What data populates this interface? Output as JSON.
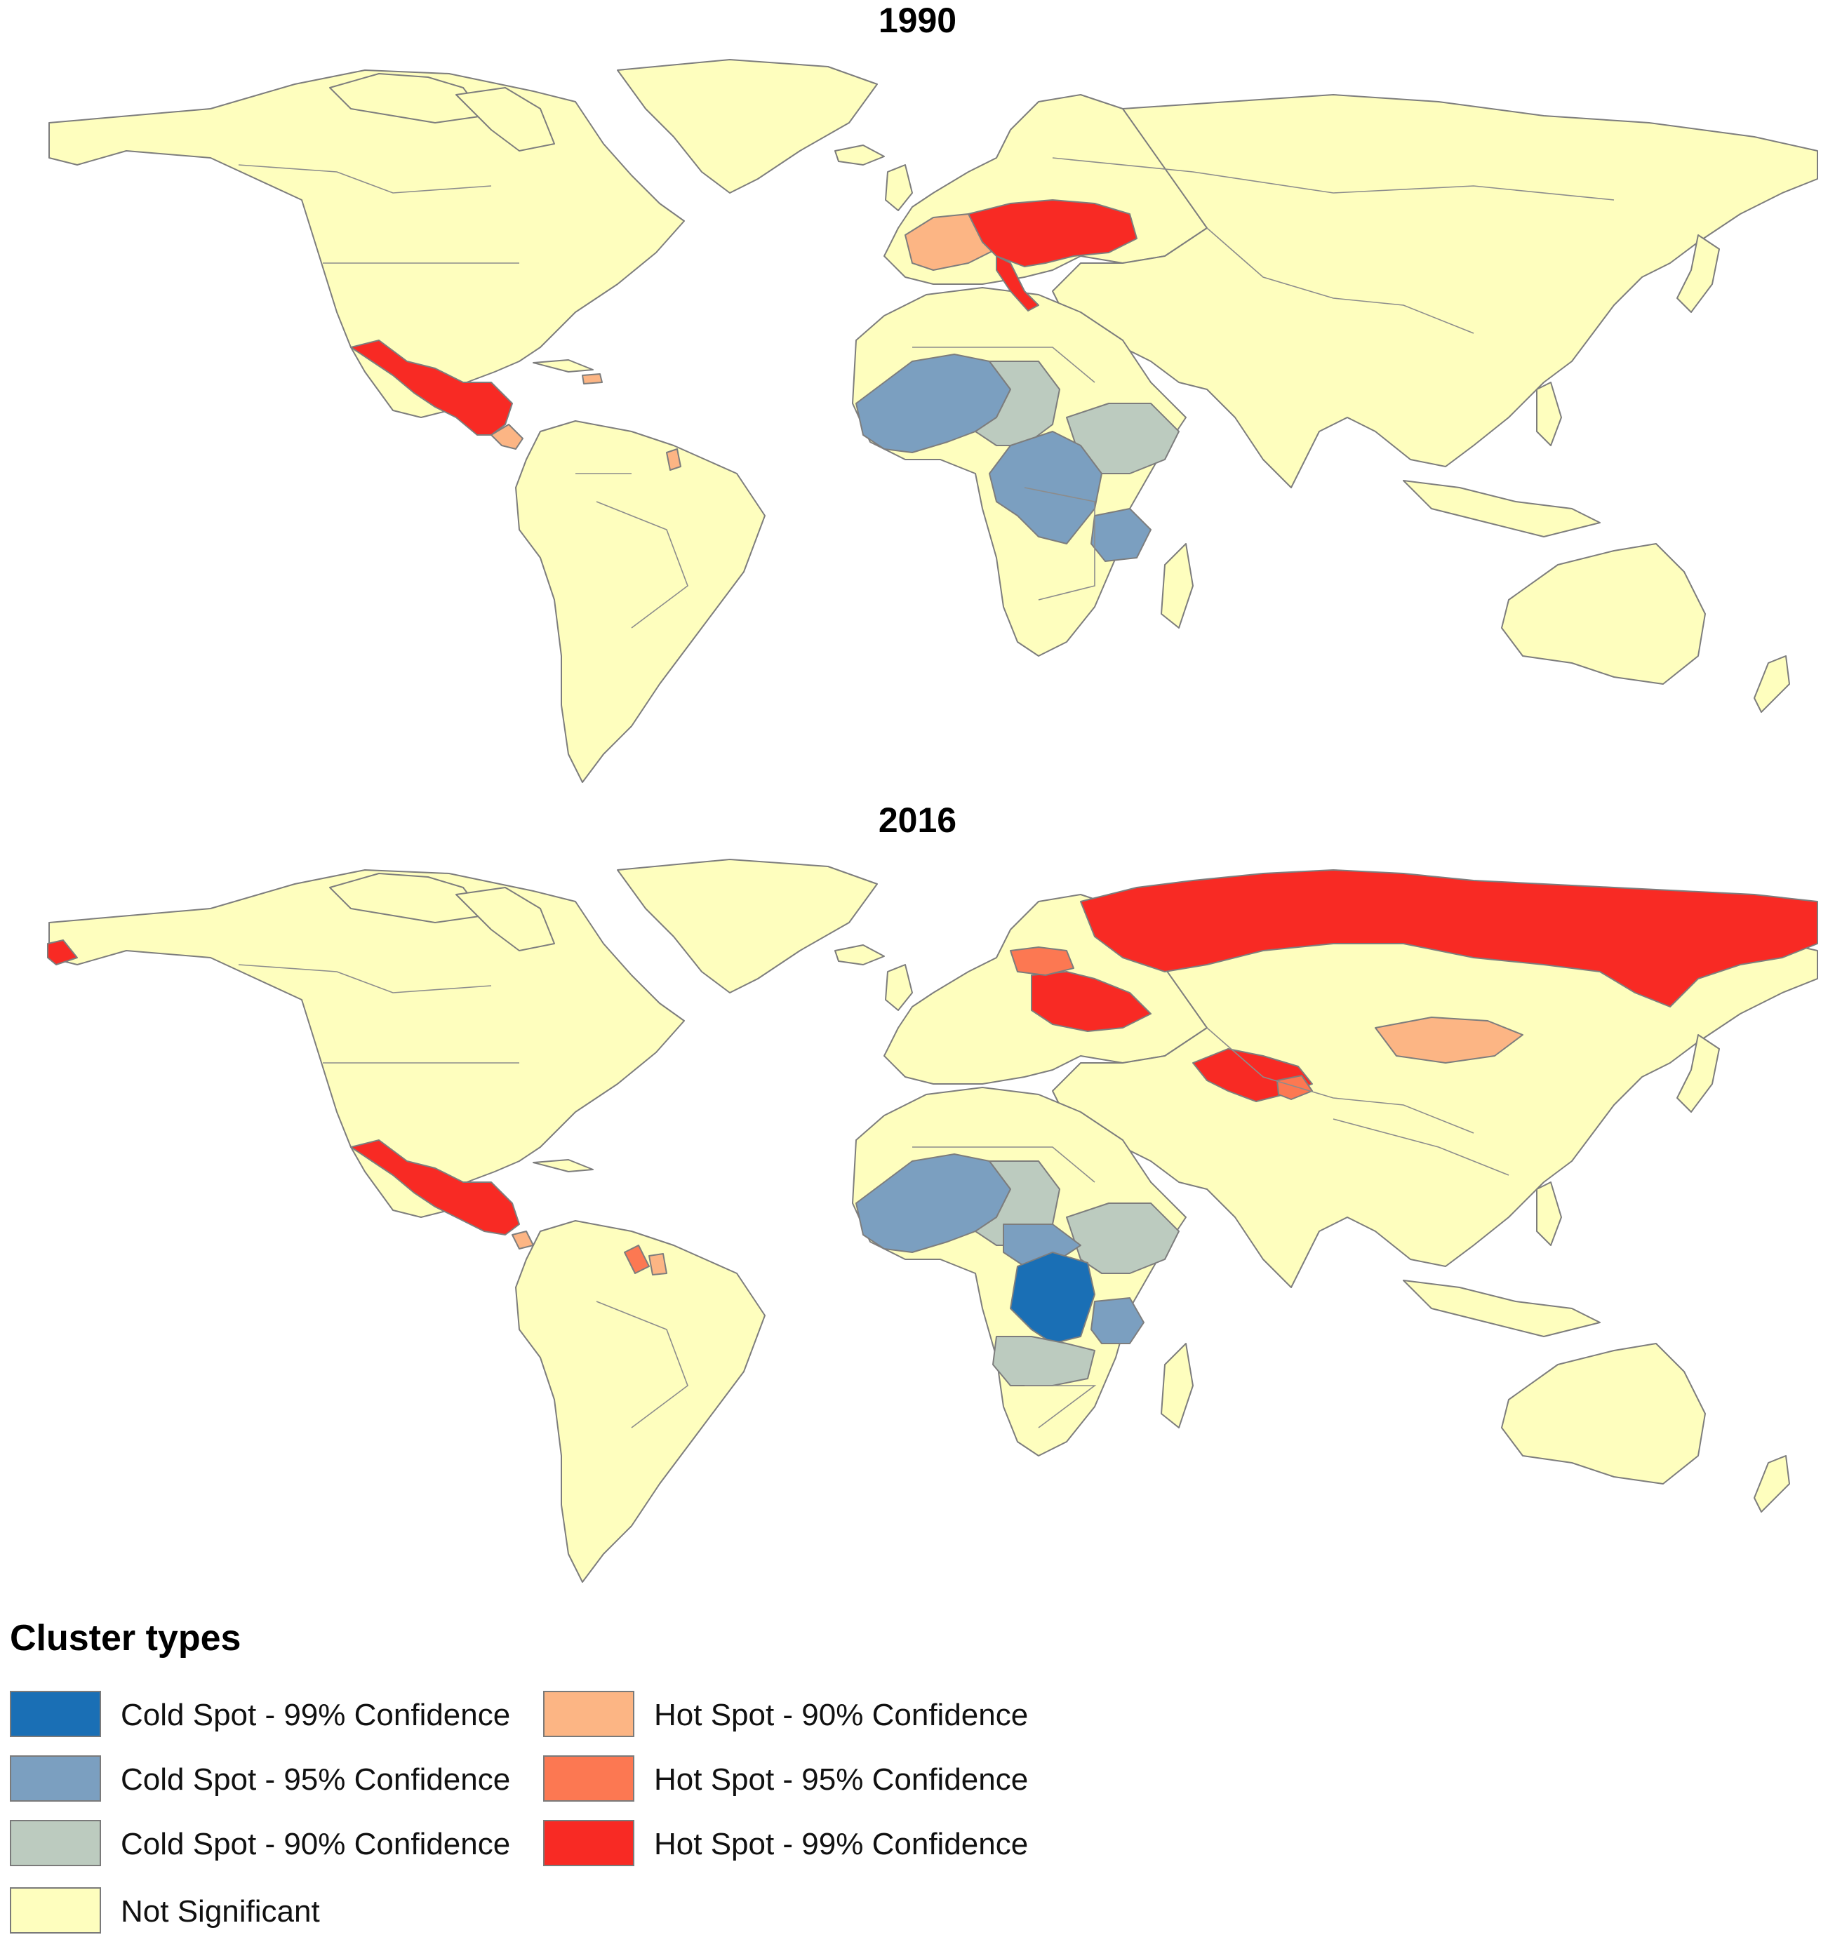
{
  "maps": [
    {
      "title": "1990",
      "hot_spot_99": [
        "Mexico",
        "Guatemala",
        "Honduras",
        "Poland",
        "Czechia",
        "Slovakia",
        "Hungary",
        "Austria",
        "Slovenia",
        "Croatia",
        "Bosnia and Herzegovina",
        "Serbia",
        "Romania",
        "Ukraine",
        "Moldova",
        "Italy"
      ],
      "hot_spot_95": [],
      "hot_spot_90": [
        "France",
        "Germany",
        "Costa Rica",
        "Panama",
        "Dominican Republic",
        "French Guiana"
      ],
      "cold_spot_99": [],
      "cold_spot_95": [
        "Senegal",
        "Gambia",
        "Guinea-Bissau",
        "Guinea",
        "Sierra Leone",
        "Liberia",
        "Côte d'Ivoire",
        "Burkina Faso",
        "Mali",
        "Niger",
        "Ghana",
        "Togo",
        "Benin",
        "Central African Republic",
        "Cameroon",
        "Congo",
        "DR Congo",
        "Tanzania",
        "Rwanda",
        "Burundi"
      ],
      "cold_spot_90": [
        "Chad",
        "Nigeria",
        "Sudan",
        "South Sudan",
        "Ethiopia",
        "Uganda",
        "Gabon"
      ],
      "not_significant": "all other countries"
    },
    {
      "title": "2016",
      "hot_spot_99": [
        "Russia",
        "Belarus",
        "Ukraine",
        "Kazakhstan",
        "Uzbekistan",
        "Turkmenistan",
        "Mexico",
        "Guatemala",
        "Honduras",
        "El Salvador"
      ],
      "hot_spot_95": [
        "Lithuania",
        "Latvia",
        "Kyrgyzstan",
        "Tajikistan",
        "Guyana",
        "Nicaragua"
      ],
      "hot_spot_90": [
        "Mongolia",
        "Suriname",
        "Costa Rica"
      ],
      "cold_spot_99": [
        "DR Congo"
      ],
      "cold_spot_95": [
        "Senegal",
        "Gambia",
        "Guinea-Bissau",
        "Guinea",
        "Sierra Leone",
        "Liberia",
        "Côte d'Ivoire",
        "Burkina Faso",
        "Mali",
        "Niger",
        "Ghana",
        "Togo",
        "Benin",
        "Cameroon",
        "Central African Republic",
        "Congo",
        "Tanzania"
      ],
      "cold_spot_90": [
        "Chad",
        "Nigeria",
        "South Sudan",
        "Ethiopia",
        "Uganda",
        "Angola",
        "Zambia",
        "Gabon"
      ],
      "not_significant": "all other countries"
    }
  ],
  "legend": {
    "title": "Cluster types",
    "items": [
      {
        "key": "cold-99",
        "label": "Cold Spot - 99% Confidence",
        "color": "#1a6fb5"
      },
      {
        "key": "cold-95",
        "label": "Cold Spot - 95% Confidence",
        "color": "#7b9fc0"
      },
      {
        "key": "cold-90",
        "label": "Cold Spot - 90% Confidence",
        "color": "#bccbbf"
      },
      {
        "key": "ns",
        "label": "Not Significant",
        "color": "#fefebe"
      },
      {
        "key": "hot-90",
        "label": "Hot Spot - 90% Confidence",
        "color": "#fcb584"
      },
      {
        "key": "hot-95",
        "label": "Hot Spot - 95% Confidence",
        "color": "#fc7852"
      },
      {
        "key": "hot-99",
        "label": "Hot Spot - 99% Confidence",
        "color": "#f82a24"
      }
    ]
  }
}
